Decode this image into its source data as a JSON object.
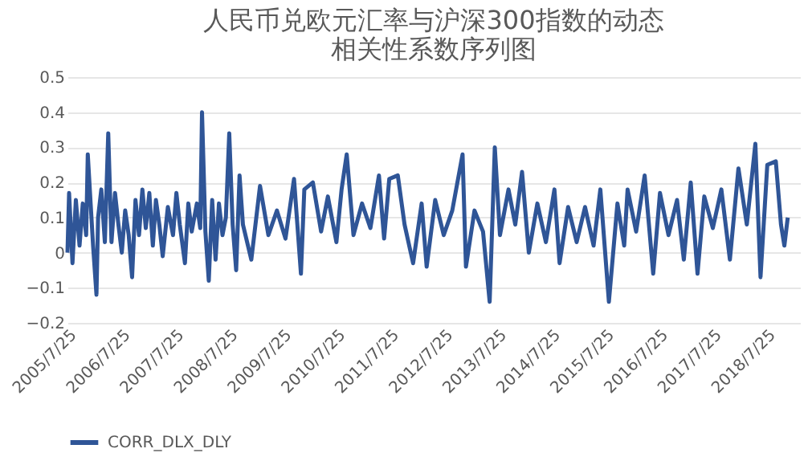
{
  "chart_data": {
    "type": "line",
    "title": [
      "人民币兑欧元汇率与沪深300指数的动态",
      "相关性系数序列图"
    ],
    "x": [
      "2005-07-25",
      "2005-08-05",
      "2005-08-28",
      "2005-09-20",
      "2005-10-15",
      "2005-11-06",
      "2005-11-29",
      "2005-12-10",
      "2006-01-15",
      "2006-02-07",
      "2006-02-18",
      "2006-03-12",
      "2006-04-05",
      "2006-04-28",
      "2006-05-20",
      "2006-06-13",
      "2006-07-06",
      "2006-07-29",
      "2006-08-21",
      "2006-09-14",
      "2006-10-07",
      "2006-10-30",
      "2006-11-23",
      "2006-12-16",
      "2007-01-08",
      "2007-02-01",
      "2007-02-25",
      "2007-03-18",
      "2007-04-10",
      "2007-05-03",
      "2007-06-07",
      "2007-07-12",
      "2007-08-04",
      "2007-08-27",
      "2007-10-01",
      "2007-10-24",
      "2007-11-16",
      "2007-12-21",
      "2008-01-13",
      "2008-01-25",
      "2008-02-17",
      "2008-03-11",
      "2008-04-03",
      "2008-04-26",
      "2008-05-19",
      "2008-06-12",
      "2008-07-05",
      "2008-07-28",
      "2008-08-20",
      "2008-09-13",
      "2008-10-06",
      "2008-10-29",
      "2008-12-25",
      "2009-02-22",
      "2009-04-20",
      "2009-06-17",
      "2009-08-14",
      "2009-10-11",
      "2009-11-27",
      "2009-12-20",
      "2010-02-16",
      "2010-04-13",
      "2010-05-29",
      "2010-07-26",
      "2010-08-30",
      "2010-10-04",
      "2010-11-19",
      "2011-01-16",
      "2011-03-14",
      "2011-05-11",
      "2011-06-15",
      "2011-07-20",
      "2011-09-16",
      "2011-11-01",
      "2011-12-29",
      "2012-02-25",
      "2012-03-30",
      "2012-05-27",
      "2012-07-24",
      "2012-09-20",
      "2012-11-29",
      "2012-12-22",
      "2013-02-18",
      "2013-04-17",
      "2013-06-01",
      "2013-07-06",
      "2013-08-10",
      "2013-10-07",
      "2013-11-22",
      "2014-01-07",
      "2014-02-22",
      "2014-04-21",
      "2014-06-18",
      "2014-08-15",
      "2014-09-19",
      "2014-11-16",
      "2015-01-13",
      "2015-03-11",
      "2015-05-08",
      "2015-06-23",
      "2015-08-20",
      "2015-10-17",
      "2015-12-02",
      "2015-12-25",
      "2016-02-21",
      "2016-04-19",
      "2016-06-16",
      "2016-08-01",
      "2016-09-28",
      "2016-11-25",
      "2017-01-10",
      "2017-02-26",
      "2017-04-13",
      "2017-05-29",
      "2017-07-26",
      "2017-09-22",
      "2017-11-19",
      "2018-01-16",
      "2018-03-14",
      "2018-05-11",
      "2018-06-15",
      "2018-07-31",
      "2018-09-27",
      "2018-11-01",
      "2018-11-24",
      "2018-12-17"
    ],
    "series": [
      {
        "name": "CORR_DLX_DLY",
        "color": "#2f5597",
        "values": [
          0.0,
          0.17,
          -0.03,
          0.15,
          0.02,
          0.14,
          0.05,
          0.28,
          0.02,
          -0.12,
          0.1,
          0.18,
          0.03,
          0.34,
          0.03,
          0.17,
          0.08,
          0.0,
          0.12,
          0.05,
          -0.07,
          0.15,
          0.05,
          0.18,
          0.07,
          0.17,
          0.02,
          0.15,
          0.08,
          -0.01,
          0.13,
          0.05,
          0.17,
          0.08,
          -0.03,
          0.14,
          0.06,
          0.14,
          0.07,
          0.4,
          0.06,
          -0.08,
          0.15,
          -0.02,
          0.14,
          0.05,
          0.1,
          0.34,
          0.08,
          -0.05,
          0.22,
          0.08,
          -0.02,
          0.19,
          0.05,
          0.12,
          0.04,
          0.21,
          -0.06,
          0.18,
          0.2,
          0.06,
          0.16,
          0.03,
          0.18,
          0.28,
          0.05,
          0.14,
          0.07,
          0.22,
          0.04,
          0.21,
          0.22,
          0.08,
          -0.03,
          0.14,
          -0.04,
          0.15,
          0.05,
          0.12,
          0.28,
          -0.04,
          0.12,
          0.06,
          -0.14,
          0.3,
          0.05,
          0.18,
          0.08,
          0.23,
          0.0,
          0.14,
          0.03,
          0.18,
          -0.03,
          0.13,
          0.03,
          0.13,
          0.02,
          0.18,
          -0.14,
          0.14,
          0.02,
          0.18,
          0.06,
          0.22,
          -0.06,
          0.17,
          0.05,
          0.15,
          -0.02,
          0.2,
          -0.06,
          0.16,
          0.07,
          0.18,
          -0.02,
          0.24,
          0.08,
          0.31,
          -0.07,
          0.25,
          0.26,
          0.08,
          0.02,
          0.1
        ]
      }
    ],
    "xlim": [
      "2005-07-25",
      "2019-03-10"
    ],
    "xticks": [
      {
        "value": "2005-07-25",
        "label": "2005/7/25"
      },
      {
        "value": "2006-07-25",
        "label": "2006/7/25"
      },
      {
        "value": "2007-07-25",
        "label": "2007/7/25"
      },
      {
        "value": "2008-07-25",
        "label": "2008/7/25"
      },
      {
        "value": "2009-07-25",
        "label": "2009/7/25"
      },
      {
        "value": "2010-07-25",
        "label": "2010/7/25"
      },
      {
        "value": "2011-07-25",
        "label": "2011/7/25"
      },
      {
        "value": "2012-07-25",
        "label": "2012/7/25"
      },
      {
        "value": "2013-07-25",
        "label": "2013/7/25"
      },
      {
        "value": "2014-07-25",
        "label": "2014/7/25"
      },
      {
        "value": "2015-07-25",
        "label": "2015/7/25"
      },
      {
        "value": "2016-07-25",
        "label": "2016/7/25"
      },
      {
        "value": "2017-07-25",
        "label": "2017/7/25"
      },
      {
        "value": "2018-07-25",
        "label": "2018/7/25"
      }
    ],
    "ylim": [
      -0.2,
      0.5
    ],
    "yticks": [
      -0.2,
      -0.1,
      0,
      0.1,
      0.2,
      0.3,
      0.4,
      0.5
    ],
    "grid": "y",
    "legend": "bottom",
    "marker": "none",
    "line_style": "solid"
  }
}
